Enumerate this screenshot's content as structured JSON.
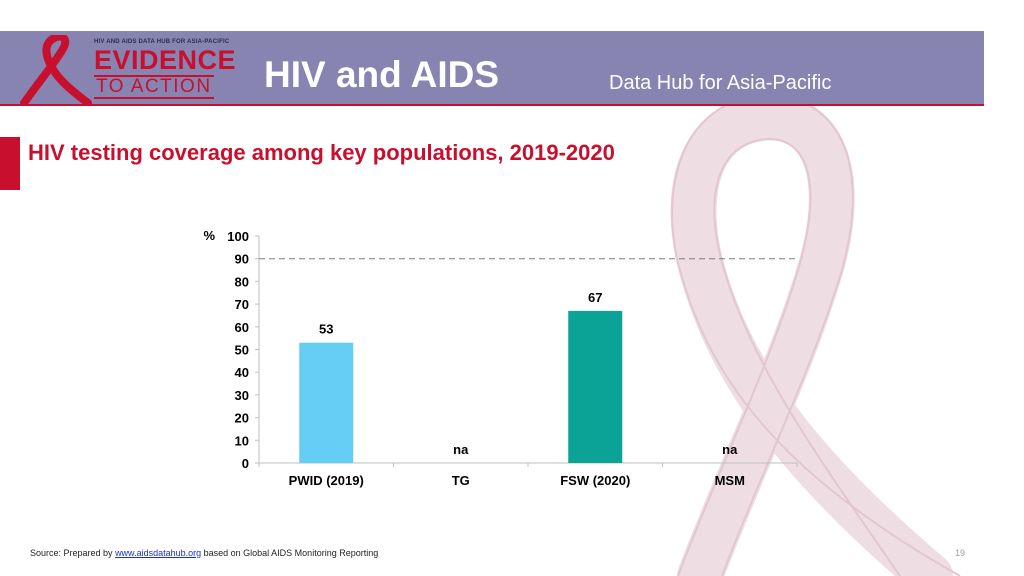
{
  "header": {
    "logo_top": "HIV AND AIDS DATA HUB FOR ASIA-PACIFIC",
    "logo_evidence": "EVIDENCE",
    "logo_action": "TO ACTION",
    "title": "HIV and AIDS",
    "subtitle": "Data Hub for Asia-Pacific"
  },
  "chart_title": "HIV testing coverage among key populations, 2019-2020",
  "chart_data": {
    "type": "bar",
    "title": "HIV testing coverage among key populations, 2019-2020",
    "ylabel": "%",
    "xlabel": "",
    "ylim": [
      0,
      100
    ],
    "yticks": [
      0,
      10,
      20,
      30,
      40,
      50,
      60,
      70,
      80,
      90,
      100
    ],
    "reference_line": 90,
    "categories": [
      "PWID (2019)",
      "TG",
      "FSW (2020)",
      "MSM"
    ],
    "values": [
      53,
      null,
      67,
      null
    ],
    "labels": [
      "53",
      "na",
      "67",
      "na"
    ],
    "colors": [
      "#66cdf5",
      "#66cdf5",
      "#0aa396",
      "#0aa396"
    ]
  },
  "footer": {
    "source_prefix": "Source: Prepared by ",
    "source_link": "www.aidsdatahub.org",
    "source_suffix": "  based on Global AIDS Monitoring Reporting",
    "page_number": "19"
  }
}
